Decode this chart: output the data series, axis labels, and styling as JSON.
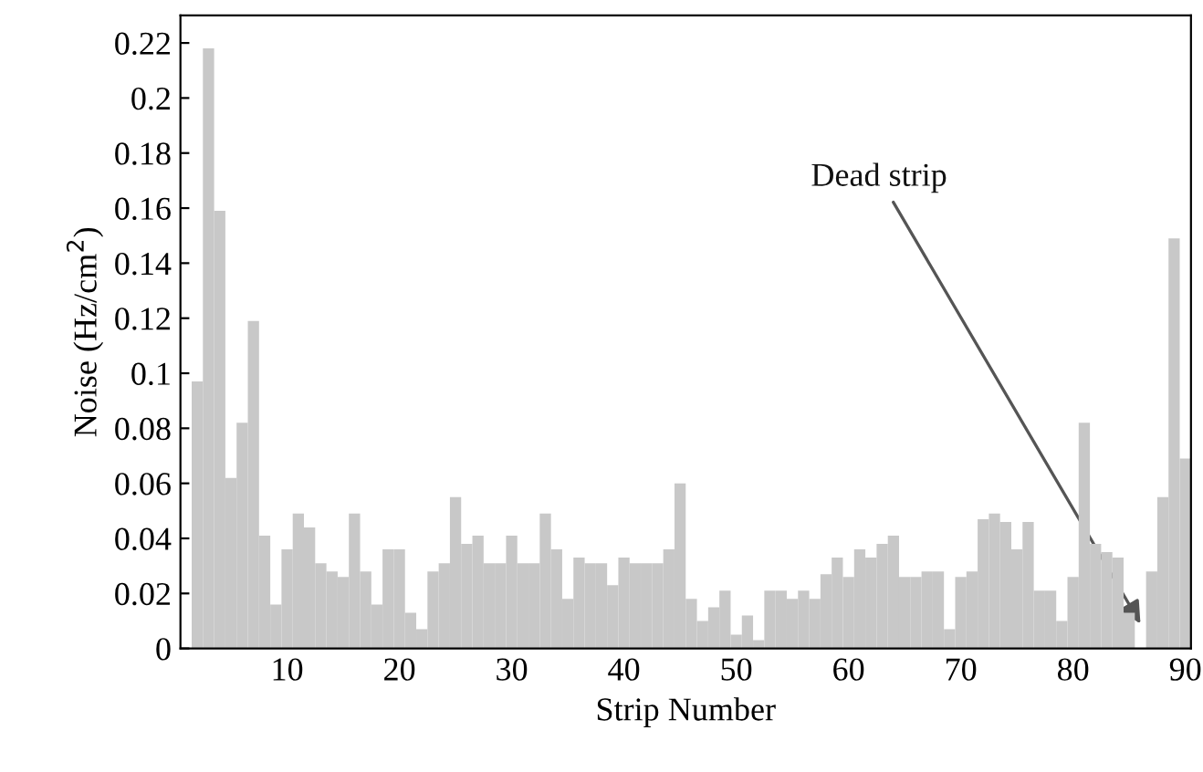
{
  "chart_data": {
    "type": "bar",
    "xlabel": "Strip Number",
    "ylabel": "Noise (Hz/cm$^{2}$)",
    "x": [
      2,
      3,
      4,
      5,
      6,
      7,
      8,
      9,
      10,
      11,
      12,
      13,
      14,
      15,
      16,
      17,
      18,
      19,
      20,
      21,
      22,
      23,
      24,
      25,
      26,
      27,
      28,
      29,
      30,
      31,
      32,
      33,
      34,
      35,
      36,
      37,
      38,
      39,
      40,
      41,
      42,
      43,
      44,
      45,
      46,
      47,
      48,
      49,
      50,
      51,
      52,
      53,
      54,
      55,
      56,
      57,
      58,
      59,
      60,
      61,
      62,
      63,
      64,
      65,
      66,
      67,
      68,
      69,
      70,
      71,
      72,
      73,
      74,
      75,
      76,
      77,
      78,
      79,
      80,
      81,
      82,
      83,
      84,
      85,
      86,
      87,
      88,
      89,
      90
    ],
    "values": [
      0.097,
      0.218,
      0.159,
      0.062,
      0.082,
      0.119,
      0.041,
      0.016,
      0.036,
      0.049,
      0.044,
      0.031,
      0.028,
      0.026,
      0.049,
      0.028,
      0.016,
      0.036,
      0.036,
      0.013,
      0.007,
      0.028,
      0.031,
      0.055,
      0.038,
      0.041,
      0.031,
      0.031,
      0.041,
      0.031,
      0.031,
      0.049,
      0.036,
      0.018,
      0.033,
      0.031,
      0.031,
      0.023,
      0.033,
      0.031,
      0.031,
      0.031,
      0.036,
      0.06,
      0.018,
      0.01,
      0.015,
      0.021,
      0.005,
      0.012,
      0.003,
      0.021,
      0.021,
      0.018,
      0.021,
      0.018,
      0.027,
      0.033,
      0.026,
      0.036,
      0.033,
      0.038,
      0.041,
      0.026,
      0.026,
      0.028,
      0.028,
      0.007,
      0.026,
      0.028,
      0.047,
      0.049,
      0.046,
      0.036,
      0.046,
      0.021,
      0.021,
      0.01,
      0.026,
      0.082,
      0.038,
      0.035,
      0.033,
      0.013,
      null,
      0.028,
      0.055,
      0.149,
      0.069
    ],
    "color": "#c8c8c8",
    "xlim": [
      0.5,
      90.5
    ],
    "xticks": [
      10,
      20,
      30,
      40,
      50,
      60,
      70,
      80,
      90
    ],
    "ylim": [
      0,
      0.23
    ],
    "yticks": [
      0,
      0.02,
      0.04,
      0.06,
      0.08,
      {
        "value": 0.1,
        "label": "0.1"
      },
      0.12,
      0.14,
      0.16,
      0.18,
      {
        "value": 0.2,
        "label": "0.2"
      },
      0.22
    ],
    "annotations": [
      {
        "text": "Dead strip",
        "x": 86,
        "y": 0.009
      }
    ]
  }
}
